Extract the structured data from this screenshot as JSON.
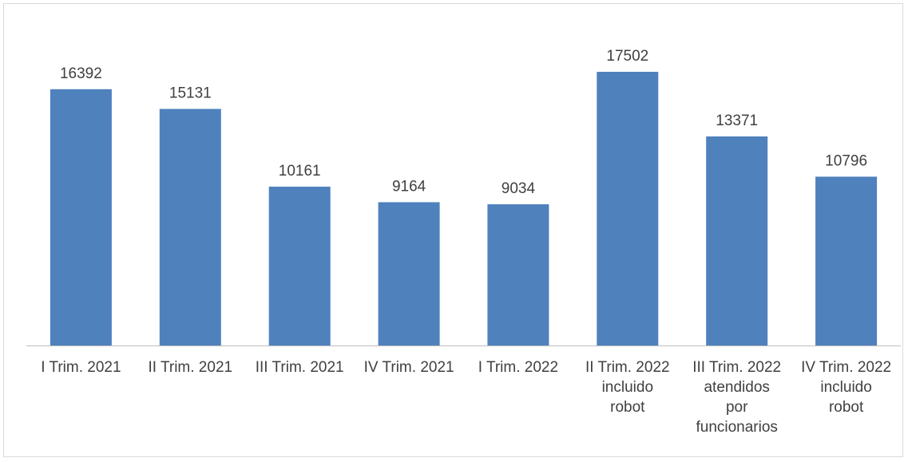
{
  "chart_data": {
    "type": "bar",
    "categories": [
      [
        "I Trim. 2021"
      ],
      [
        "II Trim. 2021"
      ],
      [
        "III Trim. 2021"
      ],
      [
        "IV Trim. 2021"
      ],
      [
        "I Trim. 2022"
      ],
      [
        "II Trim. 2022",
        "incluido",
        "robot"
      ],
      [
        "III Trim. 2022",
        "atendidos",
        "por",
        "funcionarios"
      ],
      [
        "IV Trim. 2022",
        "incluido",
        "robot"
      ]
    ],
    "values": [
      16392,
      15131,
      10161,
      9164,
      9034,
      17502,
      13371,
      10796
    ],
    "data_labels": [
      "16392",
      "15131",
      "10161",
      "9164",
      "9034",
      "17502",
      "13371",
      "10796"
    ],
    "title": "",
    "xlabel": "",
    "ylabel": "",
    "ylim": [
      0,
      20000
    ],
    "grid": false,
    "legend": "none",
    "colors": {
      "bar": "#4f81bd",
      "text": "#404040",
      "axis": "#bfbfbf"
    }
  }
}
